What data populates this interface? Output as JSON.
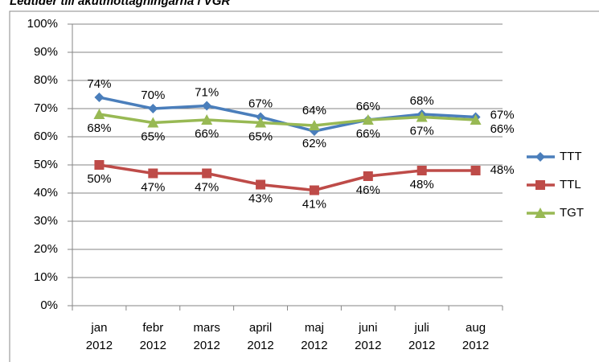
{
  "chart_data": {
    "type": "line",
    "title": "Ledtider till akutmottagningarna i VGR",
    "categories": [
      "jan 2012",
      "febr 2012",
      "mars 2012",
      "april 2012",
      "maj 2012",
      "juni 2012",
      "juli 2012",
      "aug 2012"
    ],
    "series": [
      {
        "name": "TTT",
        "color": "#4a7ebb",
        "marker": "diamond",
        "values": [
          74,
          70,
          71,
          67,
          62,
          66,
          68,
          67
        ],
        "value_labels": [
          "74%",
          "70%",
          "71%",
          "67%",
          "62%",
          "66%",
          "68%",
          "67%"
        ]
      },
      {
        "name": "TTL",
        "color": "#be4b48",
        "marker": "square",
        "values": [
          50,
          47,
          47,
          43,
          41,
          46,
          48,
          48
        ],
        "value_labels": [
          "50%",
          "47%",
          "47%",
          "43%",
          "41%",
          "46%",
          "48%",
          "48%"
        ]
      },
      {
        "name": "TGT",
        "color": "#98b954",
        "marker": "triangle",
        "values": [
          68,
          65,
          66,
          65,
          64,
          66,
          67,
          66
        ],
        "value_labels": [
          "68%",
          "65%",
          "66%",
          "65%",
          "64%",
          "66%",
          "67%",
          "66%"
        ]
      }
    ],
    "ylim": [
      0,
      100
    ],
    "yticks": [
      {
        "value": 0,
        "label": "0%"
      },
      {
        "value": 10,
        "label": "10%"
      },
      {
        "value": 20,
        "label": "20%"
      },
      {
        "value": 30,
        "label": "30%"
      },
      {
        "value": 40,
        "label": "40%"
      },
      {
        "value": 50,
        "label": "50%"
      },
      {
        "value": 60,
        "label": "60%"
      },
      {
        "value": 70,
        "label": "70%"
      },
      {
        "value": 80,
        "label": "80%"
      },
      {
        "value": 90,
        "label": "90%"
      },
      {
        "value": 100,
        "label": "100%"
      }
    ],
    "grid": true,
    "legend": "right"
  }
}
